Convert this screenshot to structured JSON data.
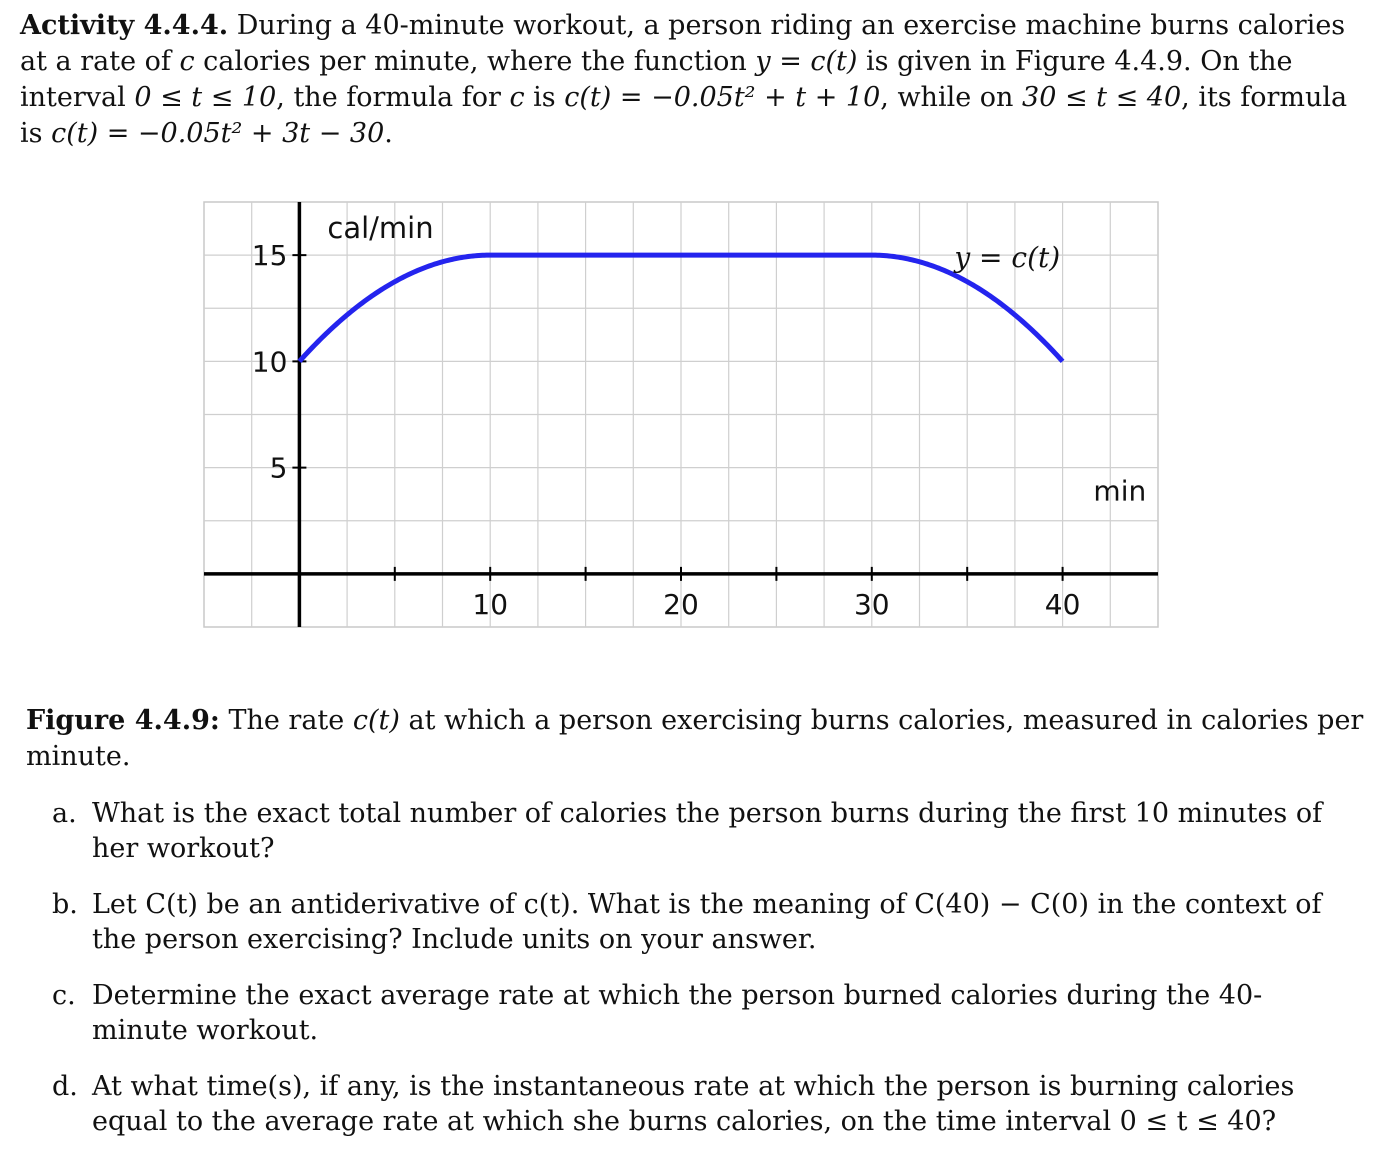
{
  "activity": {
    "heading": "Activity 4.4.4.",
    "text_1": " During a 40-minute workout, a person riding an exercise machine burns calories at a rate of ",
    "c1": "c",
    "text_2": " calories per minute, where the function ",
    "func": "y = c(t)",
    "text_3": " is given in Figure 4.4.9. On the interval ",
    "interval_1": "0 ≤ t ≤ 10",
    "text_4": ", the formula for ",
    "c2": "c",
    "text_5": " is ",
    "formula_1": "c(t) = −0.05t² + t + 10",
    "text_6": ", while on ",
    "interval_2": "30 ≤ t ≤ 40",
    "text_7": ", its formula is ",
    "formula_2": "c(t) = −0.05t² + 3t − 30",
    "text_8": "."
  },
  "chart_data": {
    "type": "line",
    "ylabel": "cal/min",
    "xlabel": "min",
    "curve_label": "y = c(t)",
    "xlim": [
      -5,
      45
    ],
    "ylim": [
      -2.5,
      17.5
    ],
    "x_ticks": [
      10,
      20,
      30,
      40
    ],
    "y_ticks": [
      5,
      10,
      15
    ],
    "grid": true,
    "series": [
      {
        "color": "#2424ee",
        "pieces": [
          {
            "t_range": [
              0,
              10
            ],
            "formula": "-0.05t^2 + t + 10"
          },
          {
            "t_range": [
              10,
              30
            ],
            "formula": "15"
          },
          {
            "t_range": [
              30,
              40
            ],
            "formula": "-0.05t^2 + 3t - 30"
          }
        ]
      }
    ]
  },
  "caption": {
    "label": "Figure 4.4.9:",
    "text_1": " The rate ",
    "ct": "c(t)",
    "text_2": " at which a person exercising burns calories, measured in calories per minute."
  },
  "questions": [
    {
      "label": "a.",
      "text": "What is the exact total number of calories the person burns during the first 10 minutes of her workout?"
    },
    {
      "label": "b.",
      "text": "Let C(t) be an antiderivative of c(t). What is the meaning of C(40) − C(0) in the context of the person exercising? Include units on your answer."
    },
    {
      "label": "c.",
      "text": "Determine the exact average rate at which the person burned calories during the 40-minute workout."
    },
    {
      "label": "d.",
      "text": "At what time(s), if any, is the instantaneous rate at which the person is burning calories equal to the average rate at which she burns calories, on the time interval 0 ≤ t ≤ 40?"
    }
  ]
}
